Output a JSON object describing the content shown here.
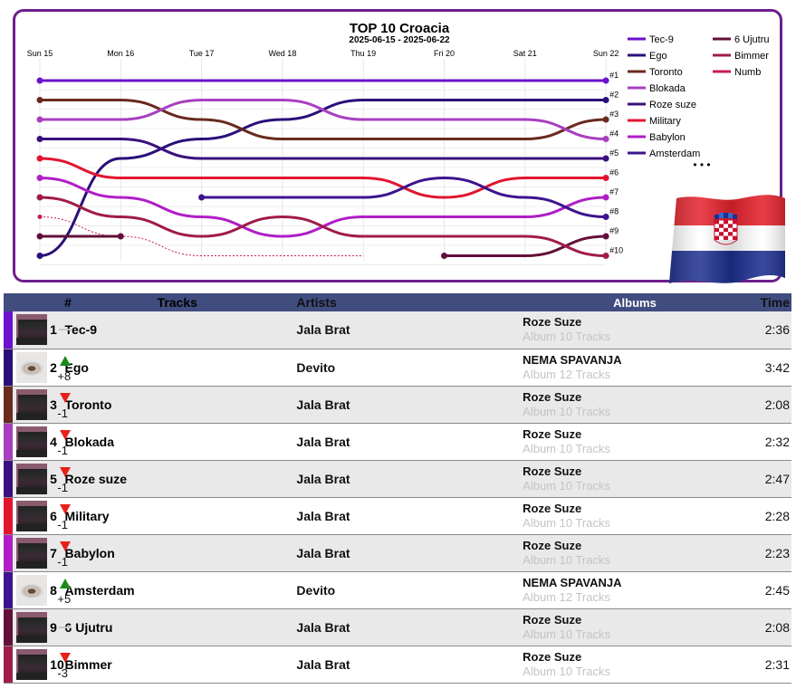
{
  "chart_data": {
    "type": "bump",
    "title": "TOP 10 Croacia",
    "subtitle": "2025-06-15 - 2025-06-22",
    "x_labels": [
      "Sun 15",
      "Mon 16",
      "Tue 17",
      "Wed 18",
      "Thu 19",
      "Fri 20",
      "Sat 21",
      "Sun 22"
    ],
    "rank_labels": [
      "#1",
      "#2",
      "#3",
      "#4",
      "#5",
      "#6",
      "#7",
      "#8",
      "#9",
      "#10"
    ],
    "series": [
      {
        "name": "Tec-9",
        "color": "#6b12cc",
        "ranks": [
          1,
          1,
          1,
          1,
          1,
          1,
          1,
          1
        ]
      },
      {
        "name": "Ego",
        "color": "#2a0f7a",
        "ranks": [
          10,
          5,
          4,
          3,
          2,
          2,
          2,
          2
        ]
      },
      {
        "name": "Toronto",
        "color": "#6a2a1e",
        "ranks": [
          2,
          2,
          3,
          4,
          4,
          4,
          4,
          3
        ]
      },
      {
        "name": "Blokada",
        "color": "#a83fc0",
        "ranks": [
          3,
          3,
          2,
          2,
          3,
          3,
          3,
          4
        ]
      },
      {
        "name": "Roze suze",
        "color": "#3b0f7d",
        "ranks": [
          4,
          4,
          5,
          5,
          5,
          5,
          5,
          5
        ]
      },
      {
        "name": "Military",
        "color": "#e2152e",
        "ranks": [
          5,
          6,
          6,
          6,
          6,
          7,
          6,
          6
        ]
      },
      {
        "name": "Babylon",
        "color": "#b01ec8",
        "ranks": [
          6,
          7,
          8,
          9,
          8,
          8,
          8,
          7
        ]
      },
      {
        "name": "Amsterdam",
        "color": "#3c148e",
        "ranks": [
          null,
          null,
          7,
          7,
          7,
          6,
          7,
          8
        ]
      },
      {
        "name": "6 Ujutru",
        "color": "#640f3a",
        "ranks": [
          9,
          9,
          null,
          null,
          null,
          10,
          10,
          9
        ]
      },
      {
        "name": "Bimmer",
        "color": "#a01c48",
        "ranks": [
          7,
          8,
          9,
          8,
          9,
          9,
          9,
          10
        ]
      },
      {
        "name": "Numb",
        "color": "#c8195a",
        "ranks": [
          8,
          9,
          10,
          10,
          10,
          null,
          null,
          null
        ]
      }
    ],
    "legend_more": "• • •"
  },
  "flag": {
    "red": "#e4222c",
    "white": "#ffffff",
    "blue": "#1d2f8f"
  },
  "table": {
    "headers": {
      "rank": "#",
      "tracks": "Tracks",
      "artists": "Artists",
      "albums": "Albums",
      "time": "Time"
    },
    "rows": [
      {
        "rank": "1",
        "change": "",
        "dir": "same",
        "track": "Tec-9",
        "artist": "Jala Brat",
        "album": "Roze Suze",
        "album_sub": "Album 10 Tracks",
        "time": "2:36",
        "color": "#6b12cc",
        "cover": "roze"
      },
      {
        "rank": "2",
        "change": "+8",
        "dir": "up",
        "track": "Ego",
        "artist": "Devito",
        "album": "NEMA SPAVANJA",
        "album_sub": "Album 12 Tracks",
        "time": "3:42",
        "color": "#2a0f7a",
        "cover": "eye"
      },
      {
        "rank": "3",
        "change": "-1",
        "dir": "down",
        "track": "Toronto",
        "artist": "Jala Brat",
        "album": "Roze Suze",
        "album_sub": "Album 10 Tracks",
        "time": "2:08",
        "color": "#6a2a1e",
        "cover": "roze"
      },
      {
        "rank": "4",
        "change": "-1",
        "dir": "down",
        "track": "Blokada",
        "artist": "Jala Brat",
        "album": "Roze Suze",
        "album_sub": "Album 10 Tracks",
        "time": "2:32",
        "color": "#a83fc0",
        "cover": "roze"
      },
      {
        "rank": "5",
        "change": "-1",
        "dir": "down",
        "track": "Roze suze",
        "artist": "Jala Brat",
        "album": "Roze Suze",
        "album_sub": "Album 10 Tracks",
        "time": "2:47",
        "color": "#3b0f7d",
        "cover": "roze"
      },
      {
        "rank": "6",
        "change": "-1",
        "dir": "down",
        "track": "Military",
        "artist": "Jala Brat",
        "album": "Roze Suze",
        "album_sub": "Album 10 Tracks",
        "time": "2:28",
        "color": "#e2152e",
        "cover": "roze"
      },
      {
        "rank": "7",
        "change": "-1",
        "dir": "down",
        "track": "Babylon",
        "artist": "Jala Brat",
        "album": "Roze Suze",
        "album_sub": "Album 10 Tracks",
        "time": "2:23",
        "color": "#b01ec8",
        "cover": "roze"
      },
      {
        "rank": "8",
        "change": "+5",
        "dir": "up",
        "track": "Amsterdam",
        "artist": "Devito",
        "album": "NEMA SPAVANJA",
        "album_sub": "Album 12 Tracks",
        "time": "2:45",
        "color": "#3c148e",
        "cover": "eye"
      },
      {
        "rank": "9",
        "change": "",
        "dir": "same",
        "track": "6 Ujutru",
        "artist": "Jala Brat",
        "album": "Roze Suze",
        "album_sub": "Album 10 Tracks",
        "time": "2:08",
        "color": "#640f3a",
        "cover": "roze"
      },
      {
        "rank": "10",
        "change": "-3",
        "dir": "down",
        "track": "Bimmer",
        "artist": "Jala Brat",
        "album": "Roze Suze",
        "album_sub": "Album 10 Tracks",
        "time": "2:31",
        "color": "#a01c48",
        "cover": "roze"
      }
    ]
  }
}
